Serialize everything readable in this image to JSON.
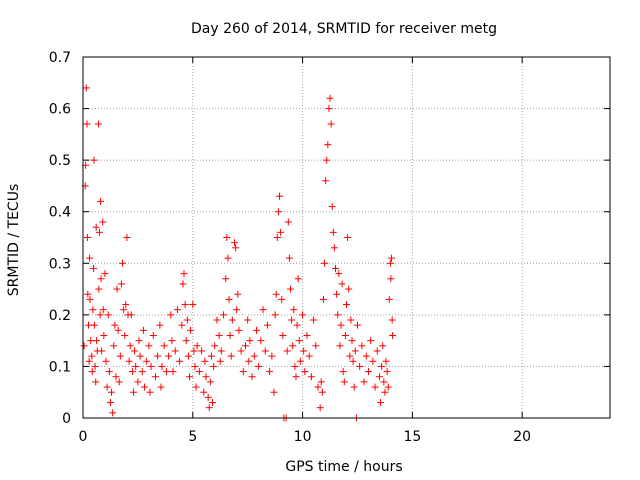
{
  "chart_data": {
    "type": "scatter",
    "title": "Day 260 of 2014, SRMTID for receiver metg",
    "xlabel": "GPS time / hours",
    "ylabel": "SRMTID / TECUs",
    "xlim": [
      0,
      24
    ],
    "ylim": [
      0,
      0.7
    ],
    "x_ticks": [
      0,
      5,
      10,
      15,
      20
    ],
    "x_tick_labels": [
      "0",
      "5",
      "10",
      "15",
      "20"
    ],
    "y_ticks": [
      0,
      0.1,
      0.2,
      0.3,
      0.4,
      0.5,
      0.6,
      0.7
    ],
    "y_tick_labels": [
      "0",
      "0.1",
      "0.2",
      "0.3",
      "0.4",
      "0.5",
      "0.6",
      "0.7"
    ],
    "grid": true,
    "marker": "plus",
    "color": "#ff0000",
    "series": [
      {
        "name": "SRMTID",
        "points": [
          [
            0.05,
            0.14
          ],
          [
            0.1,
            0.45
          ],
          [
            0.12,
            0.49
          ],
          [
            0.15,
            0.64
          ],
          [
            0.18,
            0.57
          ],
          [
            0.2,
            0.35
          ],
          [
            0.22,
            0.24
          ],
          [
            0.25,
            0.18
          ],
          [
            0.28,
            0.11
          ],
          [
            0.3,
            0.31
          ],
          [
            0.32,
            0.23
          ],
          [
            0.35,
            0.15
          ],
          [
            0.4,
            0.12
          ],
          [
            0.42,
            0.09
          ],
          [
            0.45,
            0.21
          ],
          [
            0.48,
            0.29
          ],
          [
            0.5,
            0.5
          ],
          [
            0.52,
            0.18
          ],
          [
            0.55,
            0.1
          ],
          [
            0.58,
            0.07
          ],
          [
            0.6,
            0.37
          ],
          [
            0.62,
            0.15
          ],
          [
            0.65,
            0.13
          ],
          [
            0.7,
            0.57
          ],
          [
            0.72,
            0.25
          ],
          [
            0.75,
            0.36
          ],
          [
            0.78,
            0.2
          ],
          [
            0.8,
            0.42
          ],
          [
            0.82,
            0.27
          ],
          [
            0.85,
            0.13
          ],
          [
            0.9,
            0.38
          ],
          [
            0.92,
            0.21
          ],
          [
            0.95,
            0.16
          ],
          [
            1.0,
            0.28
          ],
          [
            1.05,
            0.11
          ],
          [
            1.1,
            0.06
          ],
          [
            1.15,
            0.2
          ],
          [
            1.2,
            0.09
          ],
          [
            1.25,
            0.03
          ],
          [
            1.3,
            0.05
          ],
          [
            1.35,
            0.01
          ],
          [
            1.4,
            0.14
          ],
          [
            1.45,
            0.18
          ],
          [
            1.5,
            0.08
          ],
          [
            1.55,
            0.25
          ],
          [
            1.6,
            0.17
          ],
          [
            1.65,
            0.07
          ],
          [
            1.7,
            0.12
          ],
          [
            1.75,
            0.26
          ],
          [
            1.8,
            0.3
          ],
          [
            1.85,
            0.21
          ],
          [
            1.9,
            0.16
          ],
          [
            1.95,
            0.22
          ],
          [
            2.0,
            0.35
          ],
          [
            2.05,
            0.2
          ],
          [
            2.1,
            0.11
          ],
          [
            2.15,
            0.14
          ],
          [
            2.2,
            0.2
          ],
          [
            2.25,
            0.09
          ],
          [
            2.3,
            0.05
          ],
          [
            2.35,
            0.13
          ],
          [
            2.4,
            0.1
          ],
          [
            2.5,
            0.07
          ],
          [
            2.55,
            0.15
          ],
          [
            2.6,
            0.12
          ],
          [
            2.7,
            0.09
          ],
          [
            2.75,
            0.17
          ],
          [
            2.8,
            0.06
          ],
          [
            2.9,
            0.11
          ],
          [
            3.0,
            0.14
          ],
          [
            3.05,
            0.05
          ],
          [
            3.1,
            0.1
          ],
          [
            3.2,
            0.16
          ],
          [
            3.3,
            0.08
          ],
          [
            3.4,
            0.12
          ],
          [
            3.5,
            0.18
          ],
          [
            3.55,
            0.06
          ],
          [
            3.6,
            0.1
          ],
          [
            3.7,
            0.14
          ],
          [
            3.8,
            0.09
          ],
          [
            3.9,
            0.12
          ],
          [
            4.0,
            0.2
          ],
          [
            4.05,
            0.15
          ],
          [
            4.1,
            0.09
          ],
          [
            4.2,
            0.13
          ],
          [
            4.3,
            0.21
          ],
          [
            4.4,
            0.11
          ],
          [
            4.5,
            0.18
          ],
          [
            4.55,
            0.26
          ],
          [
            4.6,
            0.28
          ],
          [
            4.65,
            0.22
          ],
          [
            4.7,
            0.15
          ],
          [
            4.75,
            0.19
          ],
          [
            4.8,
            0.12
          ],
          [
            4.85,
            0.08
          ],
          [
            4.9,
            0.17
          ],
          [
            5.0,
            0.22
          ],
          [
            5.05,
            0.13
          ],
          [
            5.1,
            0.1
          ],
          [
            5.15,
            0.06
          ],
          [
            5.2,
            0.14
          ],
          [
            5.3,
            0.09
          ],
          [
            5.4,
            0.13
          ],
          [
            5.5,
            0.05
          ],
          [
            5.55,
            0.11
          ],
          [
            5.6,
            0.08
          ],
          [
            5.7,
            0.04
          ],
          [
            5.75,
            0.02
          ],
          [
            5.8,
            0.07
          ],
          [
            5.85,
            0.12
          ],
          [
            5.9,
            0.03
          ],
          [
            5.95,
            0.1
          ],
          [
            6.0,
            0.14
          ],
          [
            6.1,
            0.19
          ],
          [
            6.2,
            0.16
          ],
          [
            6.25,
            0.11
          ],
          [
            6.3,
            0.13
          ],
          [
            6.4,
            0.2
          ],
          [
            6.5,
            0.27
          ],
          [
            6.55,
            0.35
          ],
          [
            6.6,
            0.31
          ],
          [
            6.65,
            0.23
          ],
          [
            6.7,
            0.16
          ],
          [
            6.75,
            0.12
          ],
          [
            6.8,
            0.19
          ],
          [
            6.9,
            0.34
          ],
          [
            6.95,
            0.33
          ],
          [
            7.0,
            0.21
          ],
          [
            7.05,
            0.24
          ],
          [
            7.1,
            0.17
          ],
          [
            7.2,
            0.13
          ],
          [
            7.3,
            0.09
          ],
          [
            7.4,
            0.14
          ],
          [
            7.5,
            0.19
          ],
          [
            7.55,
            0.11
          ],
          [
            7.6,
            0.15
          ],
          [
            7.7,
            0.08
          ],
          [
            7.8,
            0.12
          ],
          [
            7.9,
            0.17
          ],
          [
            8.0,
            0.1
          ],
          [
            8.1,
            0.15
          ],
          [
            8.2,
            0.21
          ],
          [
            8.3,
            0.13
          ],
          [
            8.4,
            0.18
          ],
          [
            8.5,
            0.09
          ],
          [
            8.6,
            0.12
          ],
          [
            8.7,
            0.05
          ],
          [
            8.75,
            0.2
          ],
          [
            8.8,
            0.24
          ],
          [
            8.85,
            0.35
          ],
          [
            8.9,
            0.4
          ],
          [
            8.95,
            0.43
          ],
          [
            9.0,
            0.36
          ],
          [
            9.05,
            0.23
          ],
          [
            9.1,
            0.16
          ],
          [
            9.15,
            0.0
          ],
          [
            9.25,
            0.0
          ],
          [
            9.3,
            0.13
          ],
          [
            9.35,
            0.38
          ],
          [
            9.4,
            0.31
          ],
          [
            9.45,
            0.25
          ],
          [
            9.5,
            0.19
          ],
          [
            9.55,
            0.14
          ],
          [
            9.6,
            0.21
          ],
          [
            9.65,
            0.1
          ],
          [
            9.7,
            0.08
          ],
          [
            9.75,
            0.18
          ],
          [
            9.8,
            0.27
          ],
          [
            9.85,
            0.15
          ],
          [
            9.9,
            0.11
          ],
          [
            10.0,
            0.2
          ],
          [
            10.05,
            0.13
          ],
          [
            10.1,
            0.09
          ],
          [
            10.2,
            0.16
          ],
          [
            10.3,
            0.12
          ],
          [
            10.4,
            0.08
          ],
          [
            10.5,
            0.19
          ],
          [
            10.6,
            0.14
          ],
          [
            10.7,
            0.06
          ],
          [
            10.8,
            0.02
          ],
          [
            10.85,
            0.07
          ],
          [
            10.9,
            0.05
          ],
          [
            10.95,
            0.23
          ],
          [
            11.0,
            0.3
          ],
          [
            11.05,
            0.46
          ],
          [
            11.1,
            0.5
          ],
          [
            11.15,
            0.53
          ],
          [
            11.2,
            0.6
          ],
          [
            11.25,
            0.62
          ],
          [
            11.3,
            0.57
          ],
          [
            11.35,
            0.41
          ],
          [
            11.4,
            0.36
          ],
          [
            11.45,
            0.33
          ],
          [
            11.5,
            0.29
          ],
          [
            11.55,
            0.24
          ],
          [
            11.6,
            0.2
          ],
          [
            11.65,
            0.28
          ],
          [
            11.7,
            0.14
          ],
          [
            11.75,
            0.18
          ],
          [
            11.8,
            0.26
          ],
          [
            11.85,
            0.09
          ],
          [
            11.9,
            0.07
          ],
          [
            11.95,
            0.16
          ],
          [
            12.0,
            0.22
          ],
          [
            12.05,
            0.35
          ],
          [
            12.1,
            0.25
          ],
          [
            12.15,
            0.12
          ],
          [
            12.2,
            0.19
          ],
          [
            12.25,
            0.15
          ],
          [
            12.3,
            0.11
          ],
          [
            12.35,
            0.06
          ],
          [
            12.4,
            0.13
          ],
          [
            12.45,
            0.0
          ],
          [
            12.5,
            0.18
          ],
          [
            12.6,
            0.1
          ],
          [
            12.7,
            0.14
          ],
          [
            12.8,
            0.07
          ],
          [
            12.9,
            0.12
          ],
          [
            13.0,
            0.09
          ],
          [
            13.1,
            0.15
          ],
          [
            13.2,
            0.11
          ],
          [
            13.3,
            0.06
          ],
          [
            13.4,
            0.13
          ],
          [
            13.5,
            0.08
          ],
          [
            13.55,
            0.03
          ],
          [
            13.6,
            0.1
          ],
          [
            13.65,
            0.14
          ],
          [
            13.7,
            0.07
          ],
          [
            13.75,
            0.05
          ],
          [
            13.8,
            0.11
          ],
          [
            13.85,
            0.09
          ],
          [
            13.9,
            0.06
          ],
          [
            13.95,
            0.23
          ],
          [
            14.0,
            0.3
          ],
          [
            14.02,
            0.27
          ],
          [
            14.05,
            0.31
          ],
          [
            14.08,
            0.19
          ],
          [
            14.1,
            0.16
          ]
        ]
      }
    ]
  }
}
